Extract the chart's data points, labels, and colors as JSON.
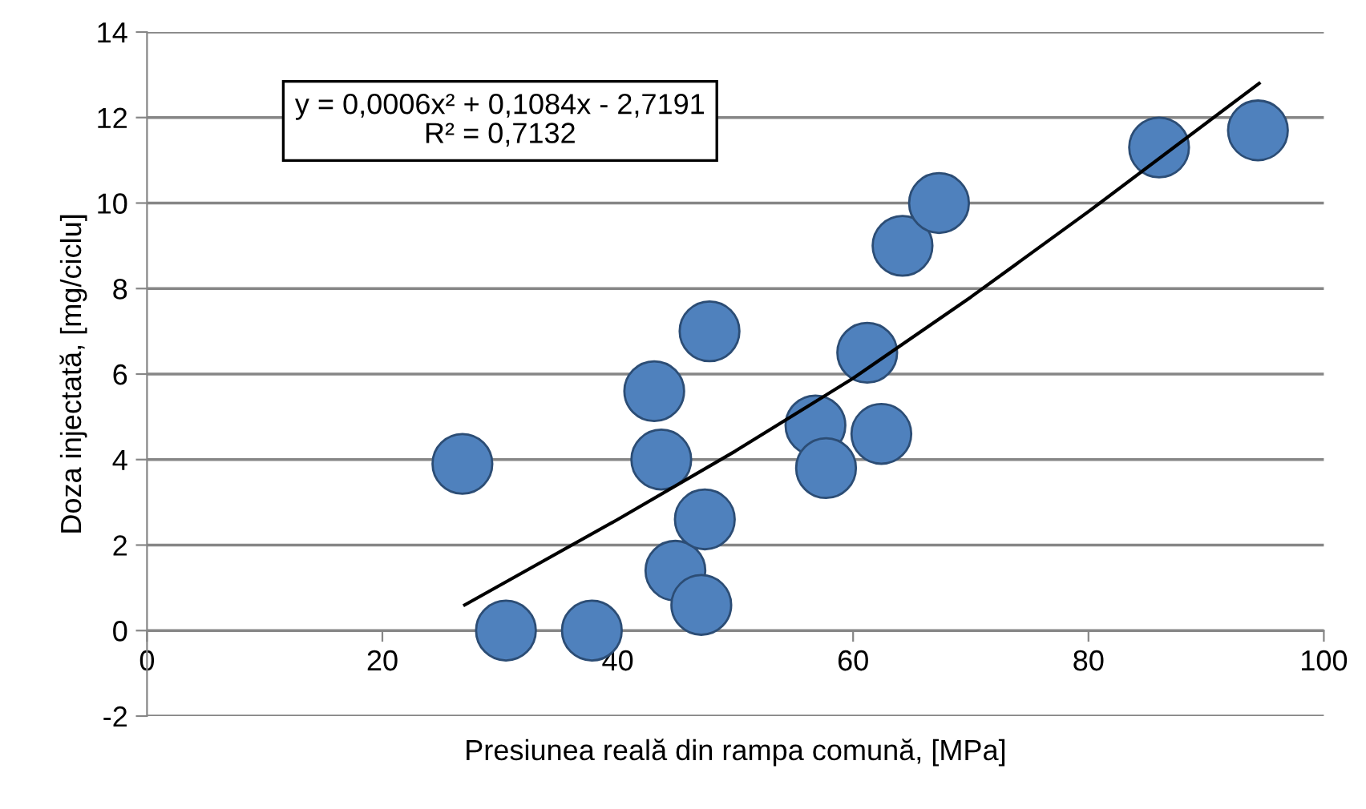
{
  "chart_data": {
    "type": "scatter",
    "xlabel": "Presiunea reală din rampa comună, [MPa]",
    "ylabel": "Doza injectată, [mg/ciclu]",
    "xlim": [
      0,
      100
    ],
    "xticks": [
      0,
      20,
      40,
      60,
      80,
      100
    ],
    "ylim": [
      -2,
      14
    ],
    "yticks": [
      -2,
      0,
      2,
      4,
      6,
      8,
      10,
      12,
      14
    ],
    "grid": "y",
    "marker": "circle",
    "legend": false,
    "annotations": [
      "y = 0,0006x² + 0,1084x - 2,7191\nR² = 0,7132"
    ],
    "series": [
      {
        "color": "#4f81bd",
        "x": [
          26.8,
          30.5,
          37.8,
          43.1,
          43.7,
          44.9,
          47.1,
          47.4,
          47.8,
          56.8,
          57.7,
          61.2,
          62.4,
          64.2,
          67.3,
          86.0,
          94.4
        ],
        "values": [
          3.9,
          0,
          0,
          5.6,
          4.0,
          1.4,
          0.6,
          2.6,
          7.0,
          4.8,
          3.8,
          6.5,
          4.6,
          9.0,
          10.0,
          11.3,
          11.7
        ]
      },
      {
        "type": "line",
        "color": "#000000",
        "line_style": "solid",
        "marker": "none",
        "x": [
          27,
          40,
          50,
          60,
          70,
          80,
          94.5
        ],
        "values": [
          0.6,
          2.6,
          4.2,
          5.9,
          7.8,
          9.8,
          12.8
        ]
      }
    ]
  }
}
